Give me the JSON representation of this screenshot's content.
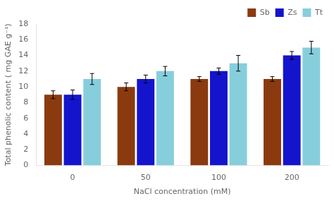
{
  "chart_data": {
    "type": "bar",
    "categories": [
      "0",
      "50",
      "100",
      "200"
    ],
    "series": [
      {
        "name": "Sb",
        "color": "#8B3A0F",
        "values": [
          9.0,
          10.0,
          11.0,
          11.0
        ],
        "errors": [
          0.5,
          0.5,
          0.3,
          0.3
        ]
      },
      {
        "name": "Zs",
        "color": "#1414CC",
        "values": [
          9.0,
          11.0,
          12.0,
          14.0
        ],
        "errors": [
          0.6,
          0.5,
          0.4,
          0.5
        ]
      },
      {
        "name": "Tt",
        "color": "#87CEDC",
        "values": [
          11.0,
          12.0,
          13.0,
          15.0
        ],
        "errors": [
          0.7,
          0.6,
          1.0,
          0.8
        ]
      }
    ],
    "xlabel": "NaCl concentration (mM)",
    "ylabel": "Total phenolic content ( mg GAE g⁻¹)",
    "ylim": [
      0,
      18
    ],
    "yticks": [
      0,
      2,
      4,
      6,
      8,
      10,
      12,
      14,
      16,
      18
    ],
    "grid": false,
    "legend": "upper right"
  }
}
